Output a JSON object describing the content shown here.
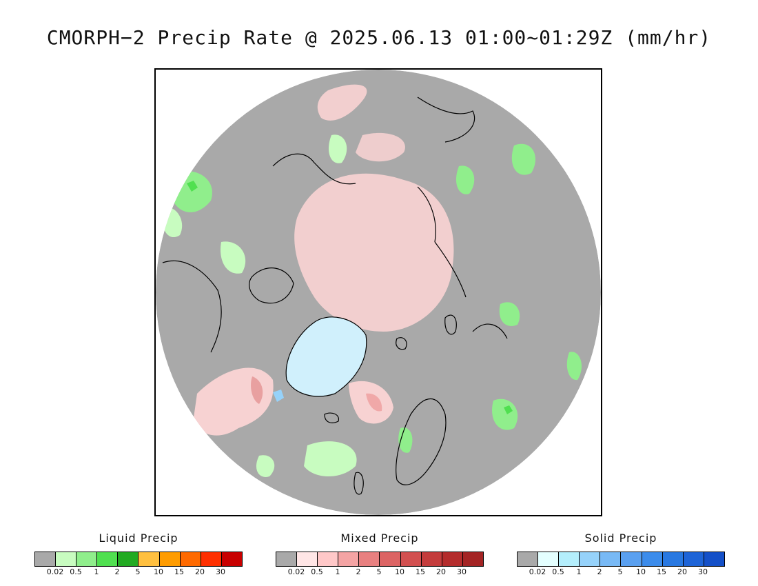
{
  "title": "CMORPH−2 Precip Rate @ 2025.06.13 01:00~01:29Z (mm/hr)",
  "legends": [
    {
      "title": "Liquid Precip",
      "colors": [
        "#a9a9a9",
        "#c8fcc0",
        "#90ee8c",
        "#50e050",
        "#22aa22",
        "#ffc040",
        "#ff9c00",
        "#ff6a00",
        "#ff3000",
        "#c80000"
      ],
      "ticks": [
        "0.02",
        "0.5",
        "1",
        "2",
        "5",
        "10",
        "15",
        "20",
        "30"
      ]
    },
    {
      "title": "Mixed Precip",
      "colors": [
        "#a9a9a9",
        "#ffe6e6",
        "#ffc8c8",
        "#f4a4a4",
        "#e88080",
        "#dc6464",
        "#d25050",
        "#c43c3c",
        "#b42c2c",
        "#a42424"
      ],
      "ticks": [
        "0.02",
        "0.5",
        "1",
        "2",
        "5",
        "10",
        "15",
        "20",
        "30"
      ]
    },
    {
      "title": "Solid Precip",
      "colors": [
        "#a9a9a9",
        "#e4ffff",
        "#b4eefc",
        "#96d2fa",
        "#78b9f5",
        "#5aa0f0",
        "#3c8ceb",
        "#2878e1",
        "#1e64d7",
        "#1450c8"
      ],
      "ticks": [
        "0.02",
        "0.5",
        "1",
        "2",
        "5",
        "10",
        "15",
        "20",
        "30"
      ]
    }
  ],
  "map": {
    "background_color": "#a9a9a9",
    "coastline_color": "#000000"
  }
}
